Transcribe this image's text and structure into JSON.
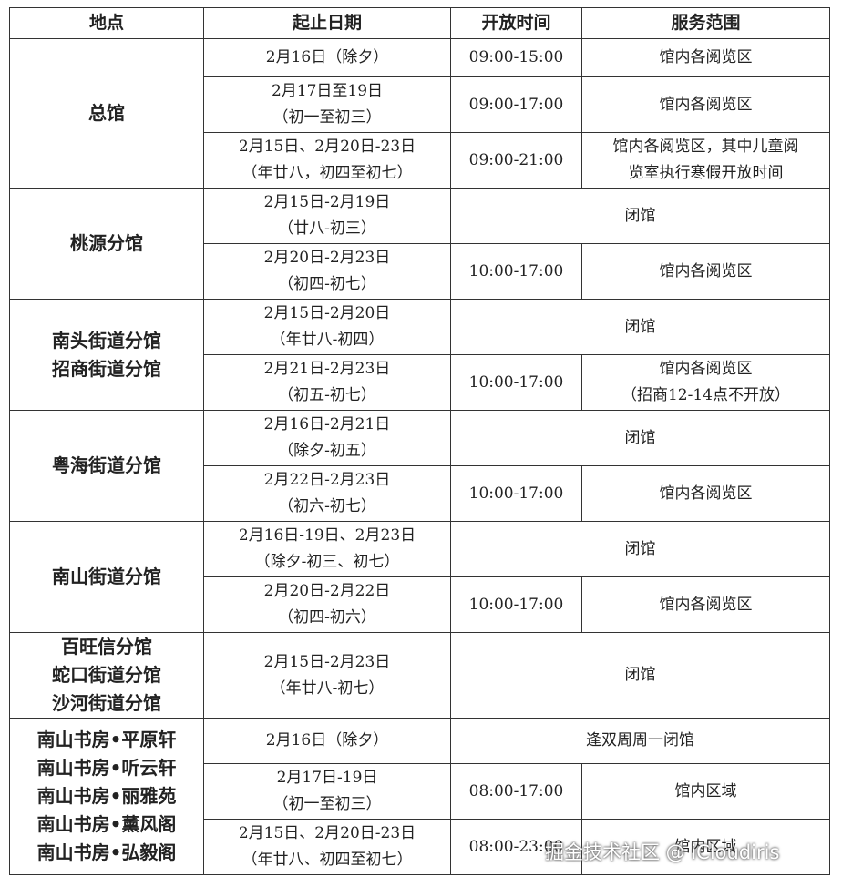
{
  "header": [
    "地点",
    "起止日期",
    "开放时间",
    "服务范围"
  ],
  "groups": [
    {
      "location": [
        "总馆"
      ],
      "rows": [
        {
          "date": [
            "2月16日（除夕）"
          ],
          "time": "09:00-15:00",
          "scope": [
            "馆内各阅览区"
          ]
        },
        {
          "date": [
            "2月17日至19日",
            "（初一至初三）"
          ],
          "time": "09:00-17:00",
          "scope": [
            "馆内各阅览区"
          ]
        },
        {
          "date": [
            "2月15日、2月20日-23日",
            "（年廿八，初四至初七）"
          ],
          "time": "09:00-21:00",
          "scope": [
            "馆内各阅览区，其中儿童阅",
            "览室执行寒假开放时间"
          ]
        }
      ]
    },
    {
      "location": [
        "桃源分馆"
      ],
      "rows": [
        {
          "date": [
            "2月15日-2月19日",
            "（廿八-初三）"
          ],
          "merged": "闭馆"
        },
        {
          "date": [
            "2月20日-2月23日",
            "（初四-初七）"
          ],
          "time": "10:00-17:00",
          "scope": [
            "馆内各阅览区"
          ]
        }
      ]
    },
    {
      "location": [
        "南头街道分馆",
        "招商街道分馆"
      ],
      "rows": [
        {
          "date": [
            "2月15日-2月20日",
            "（年廿八-初四）"
          ],
          "merged": "闭馆"
        },
        {
          "date": [
            "2月21日-2月23日",
            "（初五-初七）"
          ],
          "time": "10:00-17:00",
          "scope": [
            "馆内各阅览区",
            "（招商12-14点不开放）"
          ]
        }
      ]
    },
    {
      "location": [
        "粤海街道分馆"
      ],
      "rows": [
        {
          "date": [
            "2月16日-2月21日",
            "（除夕-初五）"
          ],
          "merged": "闭馆"
        },
        {
          "date": [
            "2月22日-2月23日",
            "（初六-初七）"
          ],
          "time": "10:00-17:00",
          "scope": [
            "馆内各阅览区"
          ]
        }
      ]
    },
    {
      "location": [
        "南山街道分馆"
      ],
      "rows": [
        {
          "date": [
            "2月16日-19日、2月23日",
            "（除夕-初三、初七）"
          ],
          "merged": "闭馆"
        },
        {
          "date": [
            "2月20日-2月22日",
            "（初四-初六）"
          ],
          "time": "10:00-17:00",
          "scope": [
            "馆内各阅览区"
          ]
        }
      ]
    },
    {
      "location": [
        "百旺信分馆",
        "蛇口街道分馆",
        "沙河街道分馆"
      ],
      "rows": [
        {
          "date": [
            "2月15日-2月23日",
            "（年廿八-初七）"
          ],
          "merged": "闭馆"
        }
      ]
    },
    {
      "location": [
        "南山书房•平原轩",
        "南山书房•听云轩",
        "南山书房•丽雅苑",
        "南山书房•薰风阁",
        "南山书房•弘毅阁"
      ],
      "rows": [
        {
          "date": [
            "2月16日（除夕）"
          ],
          "merged": "逢双周周一闭馆"
        },
        {
          "date": [
            "2月17日-19日",
            "（初一至初三）"
          ],
          "time": "08:00-17:00",
          "scope": [
            "馆内区域"
          ]
        },
        {
          "date": [
            "2月15日、2月20日-23日",
            "（年廿八、初四至初七）"
          ],
          "time": "08:00-23:00",
          "scope": [
            "馆内区域"
          ]
        }
      ]
    }
  ],
  "watermark": "掘金技术社区 @ iCloudiris"
}
